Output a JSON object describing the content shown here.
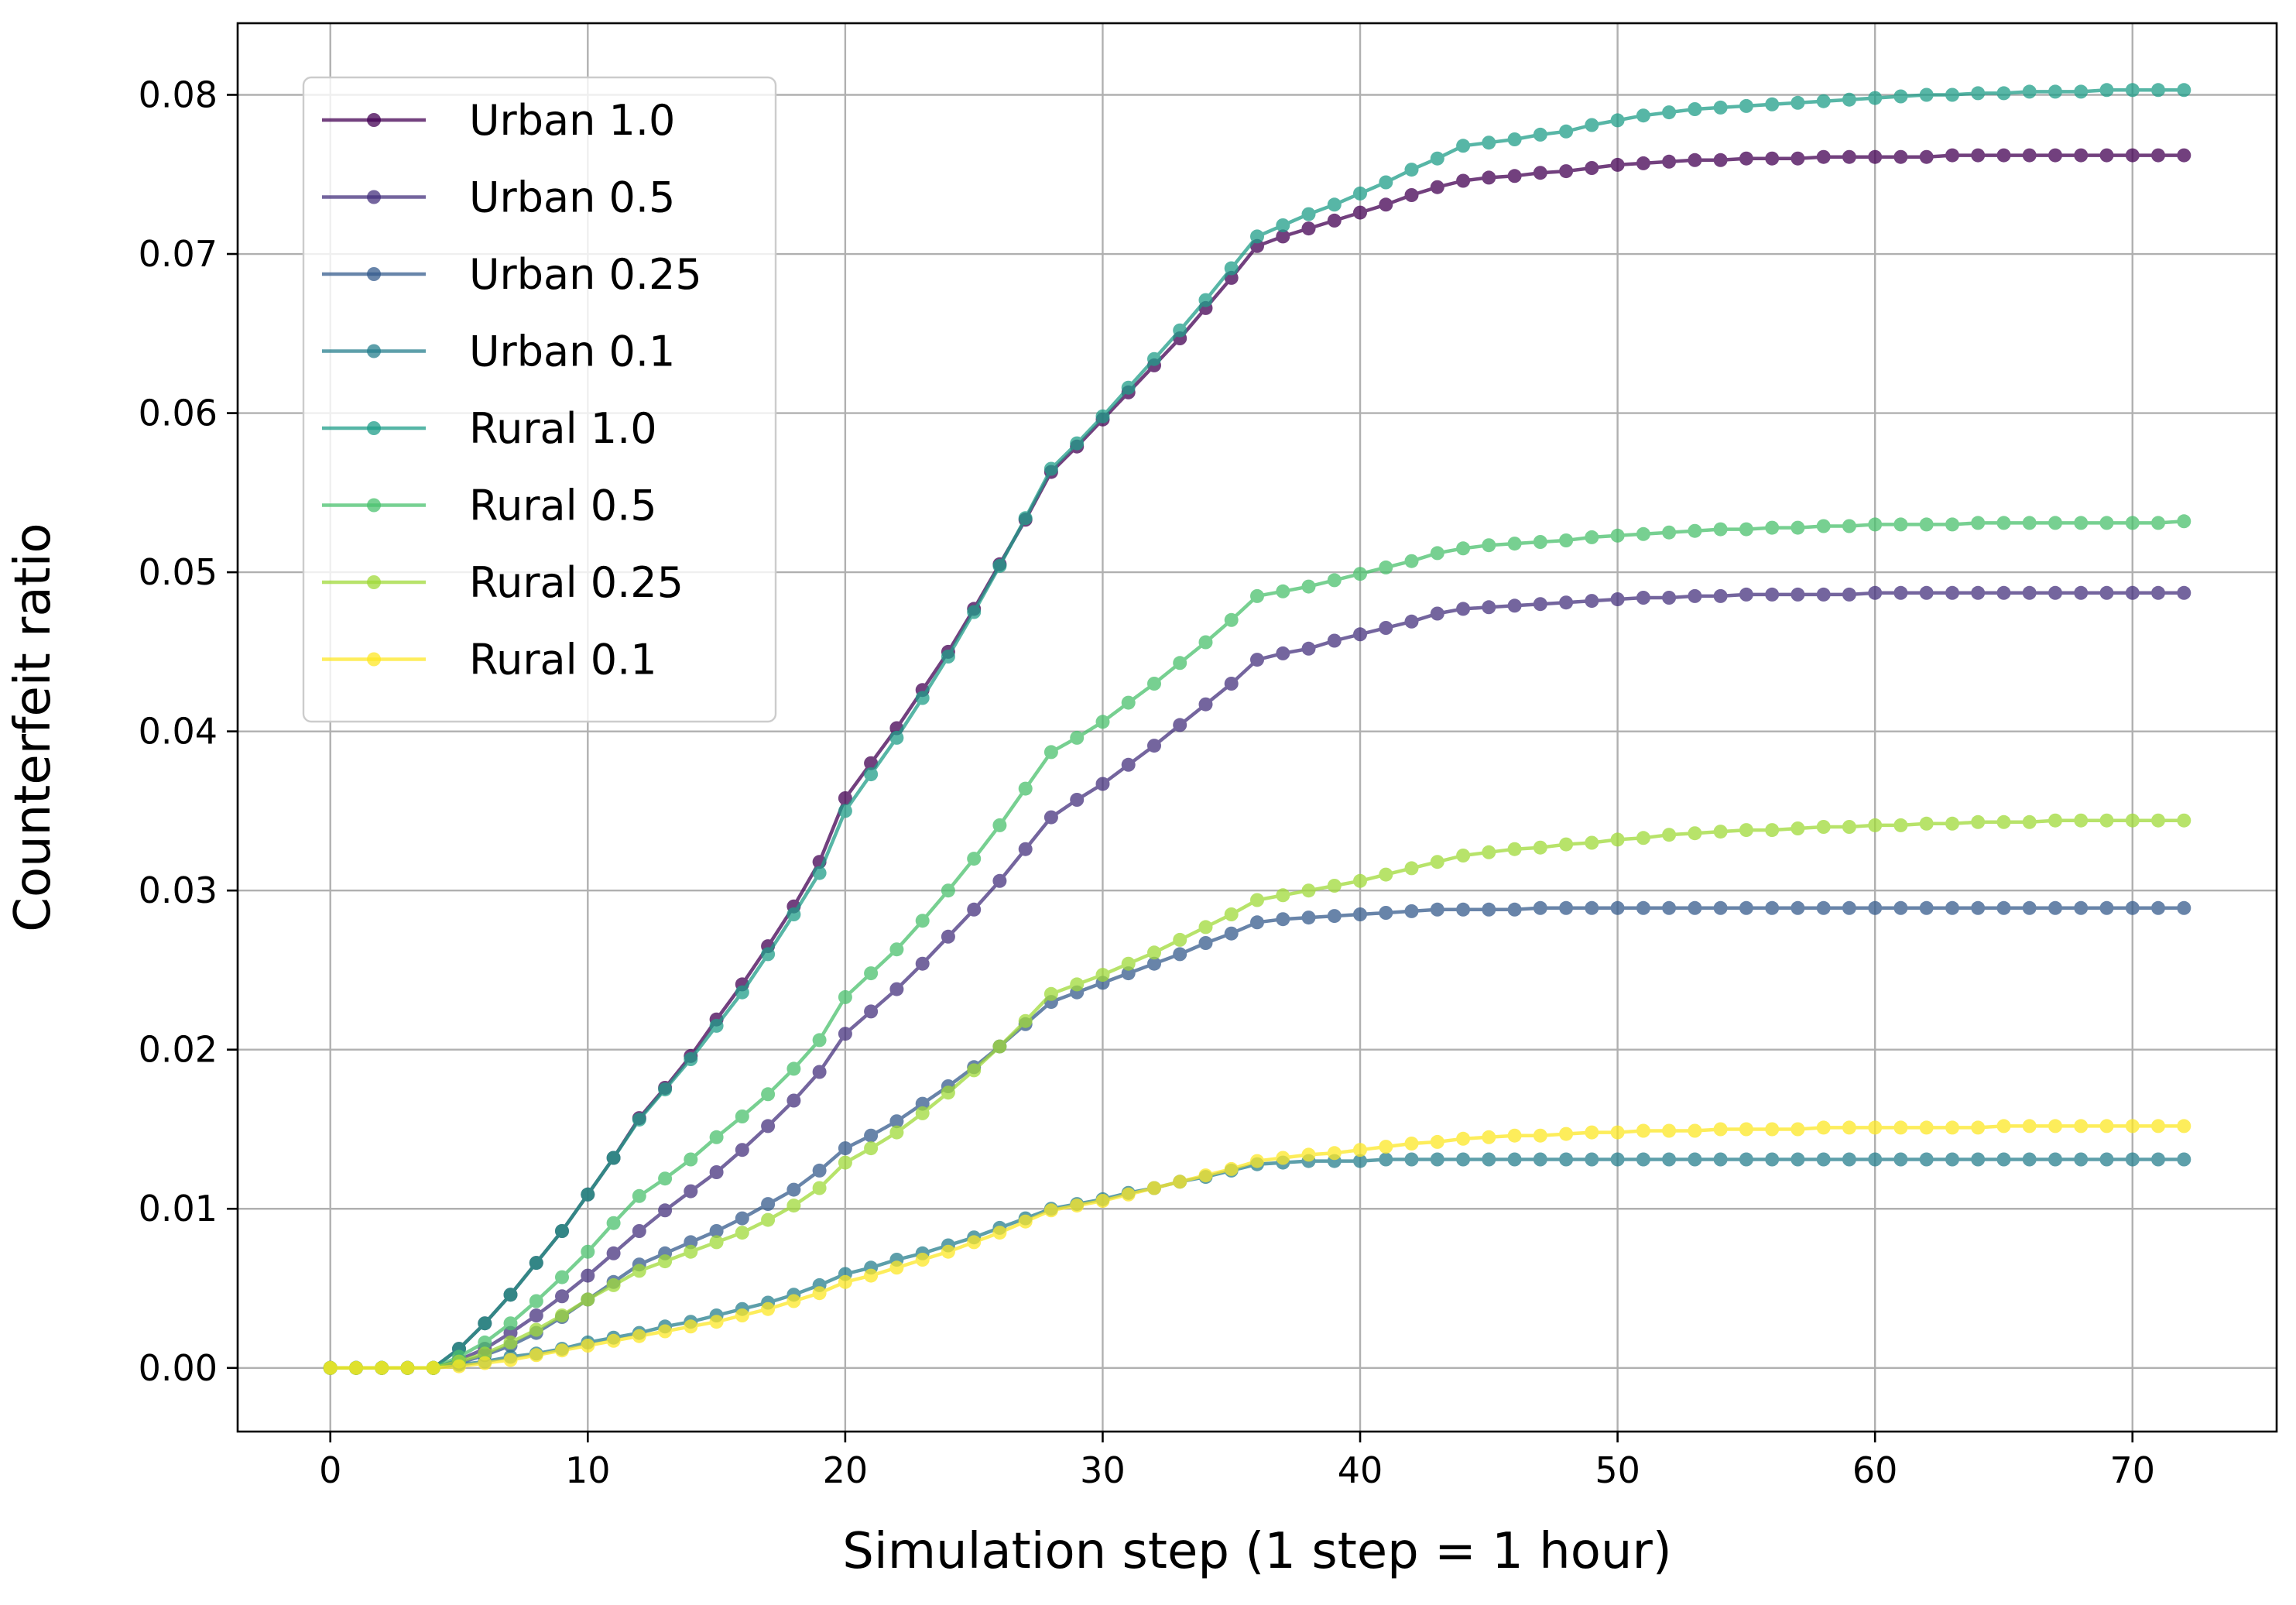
{
  "chart_data": {
    "type": "line",
    "title": "",
    "xlabel": "Simulation step (1 step = 1 hour)",
    "ylabel": "Counterfeit ratio",
    "xlim": [
      -3.6,
      75.6
    ],
    "ylim": [
      -0.004,
      0.0845
    ],
    "xticks": [
      0,
      10,
      20,
      30,
      40,
      50,
      60,
      70
    ],
    "xtick_labels": [
      "0",
      "10",
      "20",
      "30",
      "40",
      "50",
      "60",
      "70"
    ],
    "yticks": [
      0.0,
      0.01,
      0.02,
      0.03,
      0.04,
      0.05,
      0.06,
      0.07,
      0.08
    ],
    "ytick_labels": [
      "0.00",
      "0.01",
      "0.02",
      "0.03",
      "0.04",
      "0.05",
      "0.06",
      "0.07",
      "0.08"
    ],
    "grid": true,
    "legend_position": "upper-left",
    "x_start": 0,
    "x_step": 1,
    "series": [
      {
        "name": "Urban 1.0",
        "color": "#440154",
        "values": [
          0,
          0,
          0,
          0,
          0,
          0.0012,
          0.0028,
          0.0046,
          0.0066,
          0.0086,
          0.0109,
          0.0132,
          0.0157,
          0.0176,
          0.0196,
          0.0219,
          0.0241,
          0.0265,
          0.029,
          0.0318,
          0.0358,
          0.038,
          0.0402,
          0.0426,
          0.045,
          0.0477,
          0.0505,
          0.0533,
          0.0563,
          0.0579,
          0.0596,
          0.0613,
          0.063,
          0.0647,
          0.0666,
          0.0685,
          0.0705,
          0.0711,
          0.0716,
          0.0721,
          0.0726,
          0.0731,
          0.0737,
          0.0742,
          0.0746,
          0.0748,
          0.0749,
          0.0751,
          0.0752,
          0.0754,
          0.0756,
          0.0757,
          0.0758,
          0.0759,
          0.0759,
          0.076,
          0.076,
          0.076,
          0.0761,
          0.0761,
          0.0761,
          0.0761,
          0.0761,
          0.0762,
          0.0762,
          0.0762,
          0.0762,
          0.0762,
          0.0762,
          0.0762,
          0.0762,
          0.0762,
          0.0762
        ]
      },
      {
        "name": "Urban 0.5",
        "color": "#46327e",
        "values": [
          0,
          0,
          0,
          0,
          0,
          0.0005,
          0.0012,
          0.0022,
          0.0033,
          0.0045,
          0.0058,
          0.0072,
          0.0086,
          0.0099,
          0.0111,
          0.0123,
          0.0137,
          0.0152,
          0.0168,
          0.0186,
          0.021,
          0.0224,
          0.0238,
          0.0254,
          0.0271,
          0.0288,
          0.0306,
          0.0326,
          0.0346,
          0.0357,
          0.0367,
          0.0379,
          0.0391,
          0.0404,
          0.0417,
          0.043,
          0.0445,
          0.0449,
          0.0452,
          0.0457,
          0.0461,
          0.0465,
          0.0469,
          0.0474,
          0.0477,
          0.0478,
          0.0479,
          0.048,
          0.0481,
          0.0482,
          0.0483,
          0.0484,
          0.0484,
          0.0485,
          0.0485,
          0.0486,
          0.0486,
          0.0486,
          0.0486,
          0.0486,
          0.0487,
          0.0487,
          0.0487,
          0.0487,
          0.0487,
          0.0487,
          0.0487,
          0.0487,
          0.0487,
          0.0487,
          0.0487,
          0.0487,
          0.0487
        ]
      },
      {
        "name": "Urban 0.25",
        "color": "#365c8d",
        "values": [
          0,
          0,
          0,
          0,
          0,
          0.0003,
          0.0008,
          0.0014,
          0.0022,
          0.0032,
          0.0043,
          0.0054,
          0.0065,
          0.0072,
          0.0079,
          0.0086,
          0.0094,
          0.0103,
          0.0112,
          0.0124,
          0.0138,
          0.0146,
          0.0155,
          0.0166,
          0.0177,
          0.0189,
          0.0202,
          0.0216,
          0.023,
          0.0236,
          0.0242,
          0.0248,
          0.0254,
          0.026,
          0.0267,
          0.0273,
          0.028,
          0.0282,
          0.0283,
          0.0284,
          0.0285,
          0.0286,
          0.0287,
          0.0288,
          0.0288,
          0.0288,
          0.0288,
          0.0289,
          0.0289,
          0.0289,
          0.0289,
          0.0289,
          0.0289,
          0.0289,
          0.0289,
          0.0289,
          0.0289,
          0.0289,
          0.0289,
          0.0289,
          0.0289,
          0.0289,
          0.0289,
          0.0289,
          0.0289,
          0.0289,
          0.0289,
          0.0289,
          0.0289,
          0.0289,
          0.0289,
          0.0289,
          0.0289
        ]
      },
      {
        "name": "Urban 0.1",
        "color": "#277f8e",
        "values": [
          0,
          0,
          0,
          0,
          0,
          0.0002,
          0.0004,
          0.0007,
          0.0009,
          0.0012,
          0.0016,
          0.0019,
          0.0022,
          0.0026,
          0.0029,
          0.0033,
          0.0037,
          0.0041,
          0.0046,
          0.0052,
          0.0059,
          0.0063,
          0.0068,
          0.0072,
          0.0077,
          0.0082,
          0.0088,
          0.0094,
          0.01,
          0.0103,
          0.0106,
          0.011,
          0.0113,
          0.0117,
          0.012,
          0.0124,
          0.0128,
          0.0129,
          0.013,
          0.013,
          0.013,
          0.0131,
          0.0131,
          0.0131,
          0.0131,
          0.0131,
          0.0131,
          0.0131,
          0.0131,
          0.0131,
          0.0131,
          0.0131,
          0.0131,
          0.0131,
          0.0131,
          0.0131,
          0.0131,
          0.0131,
          0.0131,
          0.0131,
          0.0131,
          0.0131,
          0.0131,
          0.0131,
          0.0131,
          0.0131,
          0.0131,
          0.0131,
          0.0131,
          0.0131,
          0.0131,
          0.0131,
          0.0131
        ]
      },
      {
        "name": "Rural 1.0",
        "color": "#1f9e89",
        "values": [
          0,
          0,
          0,
          0,
          0,
          0.0012,
          0.0028,
          0.0046,
          0.0066,
          0.0086,
          0.0109,
          0.0132,
          0.0156,
          0.0175,
          0.0194,
          0.0215,
          0.0236,
          0.026,
          0.0285,
          0.0311,
          0.035,
          0.0373,
          0.0396,
          0.0421,
          0.0447,
          0.0475,
          0.0504,
          0.0534,
          0.0565,
          0.0581,
          0.0598,
          0.0616,
          0.0634,
          0.0652,
          0.0671,
          0.0691,
          0.0711,
          0.0718,
          0.0725,
          0.0731,
          0.0738,
          0.0745,
          0.0753,
          0.076,
          0.0768,
          0.077,
          0.0772,
          0.0775,
          0.0777,
          0.0781,
          0.0784,
          0.0787,
          0.0789,
          0.0791,
          0.0792,
          0.0793,
          0.0794,
          0.0795,
          0.0796,
          0.0797,
          0.0798,
          0.0799,
          0.08,
          0.08,
          0.0801,
          0.0801,
          0.0802,
          0.0802,
          0.0802,
          0.0803,
          0.0803,
          0.0803,
          0.0803
        ]
      },
      {
        "name": "Rural 0.5",
        "color": "#4ac16d",
        "values": [
          0,
          0,
          0,
          0,
          0,
          0.0007,
          0.0016,
          0.0028,
          0.0042,
          0.0057,
          0.0073,
          0.0091,
          0.0108,
          0.0119,
          0.0131,
          0.0145,
          0.0158,
          0.0172,
          0.0188,
          0.0206,
          0.0233,
          0.0248,
          0.0263,
          0.0281,
          0.03,
          0.032,
          0.0341,
          0.0364,
          0.0387,
          0.0396,
          0.0406,
          0.0418,
          0.043,
          0.0443,
          0.0456,
          0.047,
          0.0485,
          0.0488,
          0.0491,
          0.0495,
          0.0499,
          0.0503,
          0.0507,
          0.0512,
          0.0515,
          0.0517,
          0.0518,
          0.0519,
          0.052,
          0.0522,
          0.0523,
          0.0524,
          0.0525,
          0.0526,
          0.0527,
          0.0527,
          0.0528,
          0.0528,
          0.0529,
          0.0529,
          0.053,
          0.053,
          0.053,
          0.053,
          0.0531,
          0.0531,
          0.0531,
          0.0531,
          0.0531,
          0.0531,
          0.0531,
          0.0531,
          0.0532
        ]
      },
      {
        "name": "Rural 0.25",
        "color": "#a0da39",
        "values": [
          0,
          0,
          0,
          0,
          0,
          0.0004,
          0.0009,
          0.0016,
          0.0024,
          0.0033,
          0.0043,
          0.0052,
          0.0061,
          0.0067,
          0.0073,
          0.0079,
          0.0085,
          0.0093,
          0.0102,
          0.0113,
          0.0129,
          0.0138,
          0.0148,
          0.016,
          0.0173,
          0.0187,
          0.0202,
          0.0218,
          0.0235,
          0.0241,
          0.0247,
          0.0254,
          0.0261,
          0.0269,
          0.0277,
          0.0285,
          0.0294,
          0.0297,
          0.03,
          0.0303,
          0.0306,
          0.031,
          0.0314,
          0.0318,
          0.0322,
          0.0324,
          0.0326,
          0.0327,
          0.0329,
          0.033,
          0.0332,
          0.0333,
          0.0335,
          0.0336,
          0.0337,
          0.0338,
          0.0338,
          0.0339,
          0.034,
          0.034,
          0.0341,
          0.0341,
          0.0342,
          0.0342,
          0.0343,
          0.0343,
          0.0343,
          0.0344,
          0.0344,
          0.0344,
          0.0344,
          0.0344,
          0.0344
        ]
      },
      {
        "name": "Rural 0.1",
        "color": "#fde725",
        "values": [
          0,
          0,
          0,
          0,
          0,
          0.0001,
          0.0003,
          0.0005,
          0.0008,
          0.0011,
          0.0014,
          0.0017,
          0.002,
          0.0023,
          0.0026,
          0.0029,
          0.0033,
          0.0037,
          0.0042,
          0.0047,
          0.0054,
          0.0058,
          0.0063,
          0.0068,
          0.0073,
          0.0079,
          0.0085,
          0.0092,
          0.0099,
          0.0102,
          0.0105,
          0.0109,
          0.0113,
          0.0117,
          0.0121,
          0.0125,
          0.013,
          0.0132,
          0.0134,
          0.0135,
          0.0137,
          0.0139,
          0.0141,
          0.0142,
          0.0144,
          0.0145,
          0.0146,
          0.0146,
          0.0147,
          0.0148,
          0.0148,
          0.0149,
          0.0149,
          0.0149,
          0.015,
          0.015,
          0.015,
          0.015,
          0.0151,
          0.0151,
          0.0151,
          0.0151,
          0.0151,
          0.0151,
          0.0151,
          0.0152,
          0.0152,
          0.0152,
          0.0152,
          0.0152,
          0.0152,
          0.0152,
          0.0152
        ]
      }
    ]
  }
}
